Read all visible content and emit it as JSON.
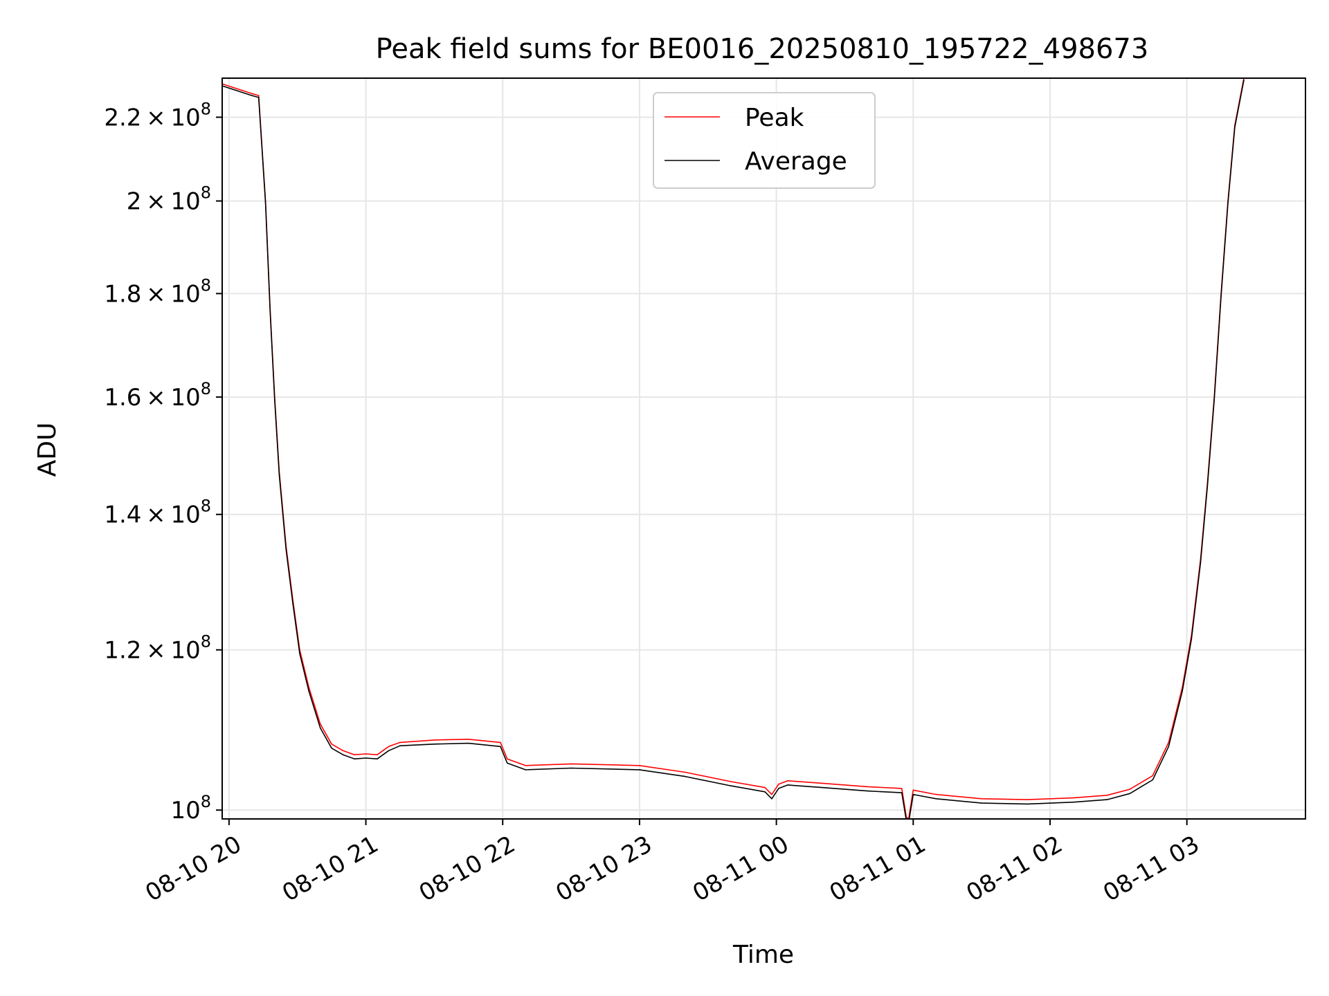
{
  "chart_data": {
    "type": "line",
    "title": "Peak field sums for BE0016_20250810_195722_498673",
    "xlabel": "Time",
    "ylabel": "ADU",
    "yscale": "log",
    "ylim": [
      99000000,
      230000000
    ],
    "xlim": [
      "2025-08-10 19:57",
      "2025-08-11 03:52"
    ],
    "grid": true,
    "legend_position": "upper center",
    "x_ticks": [
      {
        "value": "2025-08-10 20:00",
        "label": "08-10 20"
      },
      {
        "value": "2025-08-10 21:00",
        "label": "08-10 21"
      },
      {
        "value": "2025-08-10 22:00",
        "label": "08-10 22"
      },
      {
        "value": "2025-08-10 23:00",
        "label": "08-10 23"
      },
      {
        "value": "2025-08-11 00:00",
        "label": "08-11 00"
      },
      {
        "value": "2025-08-11 01:00",
        "label": "08-11 01"
      },
      {
        "value": "2025-08-11 02:00",
        "label": "08-11 02"
      },
      {
        "value": "2025-08-11 03:00",
        "label": "08-11 03"
      }
    ],
    "y_ticks": [
      {
        "value": 100000000,
        "mant": "",
        "exp": "8"
      },
      {
        "value": 120000000,
        "mant": "1.2",
        "exp": "8"
      },
      {
        "value": 140000000,
        "mant": "1.4",
        "exp": "8"
      },
      {
        "value": 160000000,
        "mant": "1.6",
        "exp": "8"
      },
      {
        "value": 180000000,
        "mant": "1.8",
        "exp": "8"
      },
      {
        "value": 200000000,
        "mant": "2",
        "exp": "8"
      },
      {
        "value": 220000000,
        "mant": "2.2",
        "exp": "8"
      }
    ],
    "series": [
      {
        "name": "Peak",
        "color": "#ff0000",
        "x": [
          "2025-08-10 19:57",
          "2025-08-10 20:10",
          "2025-08-10 20:13",
          "2025-08-10 20:16",
          "2025-08-10 20:18",
          "2025-08-10 20:20",
          "2025-08-10 20:22",
          "2025-08-10 20:25",
          "2025-08-10 20:28",
          "2025-08-10 20:31",
          "2025-08-10 20:35",
          "2025-08-10 20:40",
          "2025-08-10 20:45",
          "2025-08-10 20:50",
          "2025-08-10 20:55",
          "2025-08-10 21:00",
          "2025-08-10 21:05",
          "2025-08-10 21:10",
          "2025-08-10 21:15",
          "2025-08-10 21:30",
          "2025-08-10 21:45",
          "2025-08-10 21:59",
          "2025-08-10 22:02",
          "2025-08-10 22:10",
          "2025-08-10 22:30",
          "2025-08-10 23:00",
          "2025-08-10 23:20",
          "2025-08-10 23:40",
          "2025-08-10 23:55",
          "2025-08-10 23:58",
          "2025-08-11 00:01",
          "2025-08-11 00:05",
          "2025-08-11 00:20",
          "2025-08-11 00:40",
          "2025-08-11 00:55",
          "2025-08-11 00:57",
          "2025-08-11 00:58",
          "2025-08-11 01:00",
          "2025-08-11 01:10",
          "2025-08-11 01:30",
          "2025-08-11 01:50",
          "2025-08-11 02:10",
          "2025-08-11 02:25",
          "2025-08-11 02:35",
          "2025-08-11 02:45",
          "2025-08-11 02:52",
          "2025-08-11 02:58",
          "2025-08-11 03:02",
          "2025-08-11 03:06",
          "2025-08-11 03:09",
          "2025-08-11 03:12",
          "2025-08-11 03:15",
          "2025-08-11 03:18",
          "2025-08-11 03:21",
          "2025-08-11 03:25"
        ],
        "y": [
          228500000,
          226000000,
          225500000,
          200000000,
          177000000,
          160000000,
          147000000,
          135000000,
          127000000,
          120000000,
          115000000,
          110300000,
          107800000,
          107000000,
          106500000,
          106600000,
          106500000,
          107500000,
          108000000,
          108300000,
          108400000,
          108000000,
          106000000,
          105200000,
          105400000,
          105200000,
          104400000,
          103300000,
          102600000,
          101800000,
          103000000,
          103400000,
          103100000,
          102700000,
          102500000,
          99200000,
          99000000,
          102300000,
          101800000,
          101300000,
          101200000,
          101400000,
          101700000,
          102400000,
          104000000,
          108000000,
          115000000,
          122000000,
          133000000,
          145000000,
          160000000,
          180000000,
          200000000,
          218000000,
          230000000
        ]
      },
      {
        "name": "Average",
        "color": "#000000",
        "x": [
          "2025-08-10 19:57",
          "2025-08-10 20:10",
          "2025-08-10 20:13",
          "2025-08-10 20:16",
          "2025-08-10 20:18",
          "2025-08-10 20:20",
          "2025-08-10 20:22",
          "2025-08-10 20:25",
          "2025-08-10 20:28",
          "2025-08-10 20:31",
          "2025-08-10 20:35",
          "2025-08-10 20:40",
          "2025-08-10 20:45",
          "2025-08-10 20:50",
          "2025-08-10 20:55",
          "2025-08-10 21:00",
          "2025-08-10 21:05",
          "2025-08-10 21:10",
          "2025-08-10 21:15",
          "2025-08-10 21:30",
          "2025-08-10 21:45",
          "2025-08-10 21:59",
          "2025-08-10 22:02",
          "2025-08-10 22:10",
          "2025-08-10 22:30",
          "2025-08-10 23:00",
          "2025-08-10 23:20",
          "2025-08-10 23:40",
          "2025-08-10 23:55",
          "2025-08-10 23:58",
          "2025-08-11 00:01",
          "2025-08-11 00:05",
          "2025-08-11 00:20",
          "2025-08-11 00:40",
          "2025-08-11 00:55",
          "2025-08-11 00:57",
          "2025-08-11 00:58",
          "2025-08-11 01:00",
          "2025-08-11 01:10",
          "2025-08-11 01:30",
          "2025-08-11 01:50",
          "2025-08-11 02:10",
          "2025-08-11 02:25",
          "2025-08-11 02:35",
          "2025-08-11 02:45",
          "2025-08-11 02:52",
          "2025-08-11 02:58",
          "2025-08-11 03:02",
          "2025-08-11 03:06",
          "2025-08-11 03:09",
          "2025-08-11 03:12",
          "2025-08-11 03:15",
          "2025-08-11 03:18",
          "2025-08-11 03:21",
          "2025-08-11 03:25"
        ],
        "y": [
          228000000,
          225500000,
          225000000,
          199500000,
          176500000,
          159500000,
          146500000,
          134500000,
          126500000,
          119500000,
          114500000,
          109800000,
          107300000,
          106500000,
          106000000,
          106100000,
          106000000,
          107000000,
          107600000,
          107800000,
          107900000,
          107500000,
          105500000,
          104700000,
          104900000,
          104700000,
          103900000,
          102800000,
          102100000,
          101300000,
          102500000,
          102900000,
          102600000,
          102200000,
          102000000,
          98800000,
          98600000,
          101800000,
          101300000,
          100800000,
          100700000,
          100900000,
          101200000,
          101900000,
          103500000,
          107500000,
          114500000,
          121500000,
          132500000,
          144500000,
          159500000,
          179500000,
          199500000,
          217500000,
          229500000
        ]
      }
    ]
  }
}
